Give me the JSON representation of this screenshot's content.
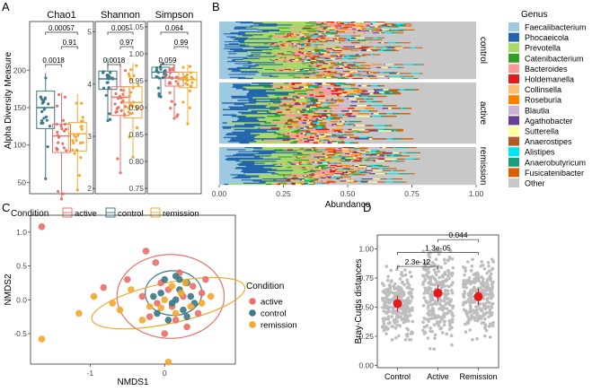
{
  "panels": {
    "a": "A",
    "b": "B",
    "c": "C",
    "d": "D"
  },
  "chart_data": [
    {
      "type": "box",
      "panel": "A",
      "ylabel": "Alpha Diversity Measure",
      "legend_title": "Condition",
      "legend": [
        {
          "label": "active",
          "color": "#E8726A"
        },
        {
          "label": "control",
          "color": "#3C7A89"
        },
        {
          "label": "remission",
          "color": "#F0A92F"
        }
      ],
      "groups_order": [
        "control",
        "active",
        "remission"
      ],
      "colors": {
        "control": "#3C7A89",
        "active": "#E8726A",
        "remission": "#F0A92F"
      },
      "facets": [
        {
          "title": "Chao1",
          "ylim": [
            35,
            265
          ],
          "ticks": [
            {
              "v": 50,
              "label": "50"
            },
            {
              "v": 100,
              "label": "100"
            },
            {
              "v": 150,
              "label": "150"
            },
            {
              "v": 200,
              "label": "200"
            }
          ],
          "boxes": [
            {
              "group": "control",
              "min": 55,
              "q1": 122,
              "median": 150,
              "q3": 172,
              "max": 196
            },
            {
              "group": "active",
              "min": 28,
              "q1": 90,
              "median": 112,
              "q3": 128,
              "max": 170
            },
            {
              "group": "remission",
              "min": 40,
              "q1": 92,
              "median": 115,
              "q3": 130,
              "max": 168
            }
          ],
          "pvalues": [
            {
              "from": "control",
              "to": "active",
              "p": "0.0018",
              "level": 0
            },
            {
              "from": "active",
              "to": "remission",
              "p": "0.91",
              "level": 1
            },
            {
              "from": "control",
              "to": "remission",
              "p": "0.00057",
              "level": 2
            }
          ]
        },
        {
          "title": "Shannon",
          "ylim": [
            1.9,
            5.2
          ],
          "ticks": [
            {
              "v": 2,
              "label": "2"
            },
            {
              "v": 3,
              "label": "3"
            },
            {
              "v": 4,
              "label": "4"
            },
            {
              "v": 5,
              "label": "5"
            }
          ],
          "boxes": [
            {
              "group": "control",
              "min": 3.3,
              "q1": 3.9,
              "median": 4.1,
              "q3": 4.25,
              "max": 4.5
            },
            {
              "group": "active",
              "min": 2.3,
              "q1": 3.4,
              "median": 3.75,
              "q3": 3.95,
              "max": 4.4
            },
            {
              "group": "remission",
              "min": 2.6,
              "q1": 3.35,
              "median": 3.65,
              "q3": 3.95,
              "max": 4.4
            }
          ],
          "pvalues": [
            {
              "from": "control",
              "to": "active",
              "p": "0.0018",
              "level": 0
            },
            {
              "from": "active",
              "to": "remission",
              "p": "0.97",
              "level": 1
            },
            {
              "from": "control",
              "to": "remission",
              "p": "0.005",
              "level": 2
            }
          ]
        },
        {
          "title": "Simpson",
          "ylim": [
            0.74,
            1.06
          ],
          "ticks": [
            {
              "v": 0.75,
              "label": "0.75"
            },
            {
              "v": 0.8,
              "label": "0.80"
            },
            {
              "v": 0.85,
              "label": "0.85"
            },
            {
              "v": 0.9,
              "label": "0.90"
            },
            {
              "v": 0.95,
              "label": "0.95"
            },
            {
              "v": 1.0,
              "label": "1.00"
            },
            {
              "v": 1.05,
              "label": "1.05"
            }
          ],
          "boxes": [
            {
              "group": "control",
              "min": 0.92,
              "q1": 0.955,
              "median": 0.966,
              "q3": 0.975,
              "max": 0.982
            },
            {
              "group": "active",
              "min": 0.88,
              "q1": 0.94,
              "median": 0.955,
              "q3": 0.966,
              "max": 0.98
            },
            {
              "group": "remission",
              "min": 0.87,
              "q1": 0.937,
              "median": 0.952,
              "q3": 0.966,
              "max": 0.98
            }
          ],
          "pvalues": [
            {
              "from": "control",
              "to": "active",
              "p": "0.059",
              "level": 0
            },
            {
              "from": "active",
              "to": "remission",
              "p": "0.99",
              "level": 1
            },
            {
              "from": "control",
              "to": "remission",
              "p": "0.064",
              "level": 2
            }
          ]
        }
      ]
    },
    {
      "type": "stacked-bar",
      "panel": "B",
      "orientation": "horizontal",
      "xlabel": "Abundance",
      "xlim": [
        0,
        1
      ],
      "xticks": [
        "0.00",
        "0.25",
        "0.50",
        "0.75",
        "1.00"
      ],
      "facets": [
        "control",
        "active",
        "remission"
      ],
      "legend_title": "Genus",
      "genera": [
        {
          "name": "Faecalibacterium",
          "color": "#9ECAE1"
        },
        {
          "name": "Phocaeicola",
          "color": "#2166AC"
        },
        {
          "name": "Prevotella",
          "color": "#A6D96A"
        },
        {
          "name": "Catenibacterium",
          "color": "#33A02C"
        },
        {
          "name": "Bacteroides",
          "color": "#FB9A99"
        },
        {
          "name": "Holdemanella",
          "color": "#E31A1C"
        },
        {
          "name": "Collinsella",
          "color": "#FDBF6F"
        },
        {
          "name": "Roseburia",
          "color": "#FF7F00"
        },
        {
          "name": "Blautia",
          "color": "#CAB2D6"
        },
        {
          "name": "Agathobacter",
          "color": "#6A3D9A"
        },
        {
          "name": "Sutterella",
          "color": "#FFFF99"
        },
        {
          "name": "Anaerostipes",
          "color": "#B15928"
        },
        {
          "name": "Alistipes",
          "color": "#00E5EE"
        },
        {
          "name": "Anaerobutyricum",
          "color": "#1B9E77"
        },
        {
          "name": "Fusicatenibacter",
          "color": "#D95F02"
        },
        {
          "name": "Other",
          "color": "#C8C8C8"
        }
      ],
      "mean_abundance": {
        "control": [
          0.08,
          0.09,
          0.15,
          0.03,
          0.04,
          0.02,
          0.03,
          0.02,
          0.02,
          0.02,
          0.02,
          0.02,
          0.02,
          0.02,
          0.02,
          0.43
        ],
        "active": [
          0.07,
          0.11,
          0.1,
          0.03,
          0.05,
          0.02,
          0.03,
          0.02,
          0.02,
          0.02,
          0.02,
          0.02,
          0.02,
          0.02,
          0.02,
          0.45
        ],
        "remission": [
          0.09,
          0.1,
          0.12,
          0.03,
          0.04,
          0.02,
          0.03,
          0.02,
          0.02,
          0.02,
          0.02,
          0.02,
          0.02,
          0.02,
          0.02,
          0.42
        ]
      },
      "row_counts": {
        "control": 58,
        "active": 46,
        "remission": 36
      }
    },
    {
      "type": "scatter",
      "panel": "C",
      "xlabel": "NMDS1",
      "ylabel": "NMDS2",
      "xlim": [
        -1.8,
        0.95
      ],
      "ylim": [
        -0.95,
        1.25
      ],
      "xticks": [
        {
          "v": -1,
          "label": "-1"
        },
        {
          "v": 0,
          "label": "0"
        }
      ],
      "yticks": [
        {
          "v": -0.5,
          "label": "-0.5"
        },
        {
          "v": 0.0,
          "label": "0.0"
        },
        {
          "v": 0.5,
          "label": "0.5"
        },
        {
          "v": 1.0,
          "label": "1.0"
        }
      ],
      "legend_title": "Condition",
      "legend": [
        {
          "label": "active",
          "color": "#E8726A"
        },
        {
          "label": "control",
          "color": "#3C7A89"
        },
        {
          "label": "remission",
          "color": "#F0A92F"
        }
      ],
      "ellipses": [
        {
          "group": "active",
          "cx": 0.08,
          "cy": 0.05,
          "rx": 0.72,
          "ry": 0.62,
          "angle": 0
        },
        {
          "group": "control",
          "cx": 0.12,
          "cy": 0.1,
          "rx": 0.38,
          "ry": 0.33,
          "angle": 0
        },
        {
          "group": "remission",
          "cx": 0.05,
          "cy": -0.05,
          "rx": 1.05,
          "ry": 0.3,
          "angle": 12
        }
      ],
      "series": [
        {
          "name": "active",
          "points": [
            [
              -1.65,
              1.08
            ],
            [
              -0.25,
              0.72
            ],
            [
              -0.12,
              0.55
            ],
            [
              -0.5,
              0.3
            ],
            [
              -0.82,
              0.18
            ],
            [
              -0.3,
              0.05
            ],
            [
              0.2,
              0.4
            ],
            [
              0.38,
              0.2
            ],
            [
              0.5,
              0.1
            ],
            [
              0.1,
              -0.1
            ],
            [
              0.45,
              -0.2
            ],
            [
              -0.2,
              -0.25
            ],
            [
              0.3,
              -0.4
            ],
            [
              0.0,
              -0.5
            ],
            [
              -0.05,
              0.25
            ],
            [
              0.25,
              0.05
            ],
            [
              0.15,
              -0.3
            ],
            [
              -0.1,
              -0.05
            ],
            [
              0.55,
              0.3
            ],
            [
              0.05,
              0.15
            ]
          ]
        },
        {
          "name": "control",
          "points": [
            [
              0.0,
              0.3
            ],
            [
              0.15,
              0.35
            ],
            [
              0.3,
              0.25
            ],
            [
              -0.05,
              0.1
            ],
            [
              0.2,
              0.15
            ],
            [
              0.35,
              0.05
            ],
            [
              0.1,
              -0.05
            ],
            [
              0.25,
              -0.15
            ],
            [
              -0.1,
              -0.2
            ],
            [
              0.05,
              -0.3
            ],
            [
              0.4,
              -0.05
            ],
            [
              0.15,
              0.0
            ],
            [
              0.3,
              -0.25
            ],
            [
              -0.15,
              0.05
            ],
            [
              0.2,
              0.3
            ]
          ]
        },
        {
          "name": "remission",
          "points": [
            [
              -1.65,
              -0.58
            ],
            [
              -1.15,
              -0.2
            ],
            [
              -0.95,
              0.05
            ],
            [
              -0.7,
              -0.05
            ],
            [
              -0.6,
              -0.15
            ],
            [
              -0.45,
              0.15
            ],
            [
              -0.2,
              -0.1
            ],
            [
              0.05,
              -0.92
            ],
            [
              0.1,
              0.2
            ],
            [
              0.22,
              0.1
            ],
            [
              0.35,
              -0.1
            ],
            [
              0.5,
              -0.05
            ],
            [
              0.62,
              0.05
            ],
            [
              0.0,
              0.0
            ],
            [
              -0.3,
              -0.3
            ],
            [
              0.15,
              -0.2
            ],
            [
              0.28,
              0.25
            ],
            [
              -0.05,
              -0.12
            ]
          ]
        }
      ]
    },
    {
      "type": "dot-jitter",
      "panel": "D",
      "ylabel": "Bray-Curtis distances",
      "categories": [
        "Control",
        "Active",
        "Remission"
      ],
      "ylim": [
        -0.02,
        1.12
      ],
      "yticks": [
        {
          "v": 0,
          "label": "0.00"
        },
        {
          "v": 0.25,
          "label": "0.25"
        },
        {
          "v": 0.5,
          "label": "0.50"
        },
        {
          "v": 0.75,
          "label": "0.75"
        },
        {
          "v": 1.0,
          "label": "1.00"
        }
      ],
      "means": [
        0.53,
        0.62,
        0.59
      ],
      "ranges": [
        [
          0.3,
          0.82
        ],
        [
          0.22,
          0.95
        ],
        [
          0.3,
          0.88
        ]
      ],
      "pvalues": [
        {
          "from": "Control",
          "to": "Active",
          "p": "2.3e-12",
          "y": 0.85
        },
        {
          "from": "Control",
          "to": "Remission",
          "p": "1.3e-05",
          "y": 0.97
        },
        {
          "from": "Active",
          "to": "Remission",
          "p": "0.044",
          "y": 1.08
        }
      ],
      "point_color": "#BDBDBD",
      "mean_color": "#E31A1C"
    }
  ]
}
